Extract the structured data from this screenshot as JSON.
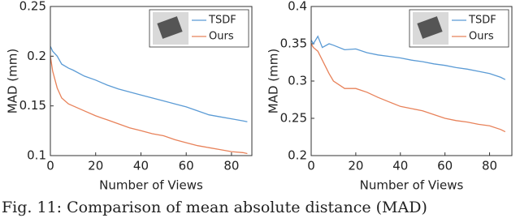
{
  "chart_data": [
    {
      "type": "line",
      "xlabel": "Number of Views",
      "ylabel": "MAD (mm)",
      "x": [
        0,
        1,
        3,
        5,
        8,
        10,
        15,
        20,
        25,
        30,
        35,
        40,
        45,
        50,
        55,
        60,
        65,
        70,
        75,
        80,
        85,
        87
      ],
      "series": [
        {
          "name": "TSDF",
          "color": "#5b9bd5",
          "values": [
            0.21,
            0.205,
            0.2,
            0.192,
            0.188,
            0.186,
            0.18,
            0.176,
            0.171,
            0.167,
            0.164,
            0.161,
            0.158,
            0.155,
            0.152,
            0.149,
            0.145,
            0.141,
            0.139,
            0.137,
            0.135,
            0.134
          ]
        },
        {
          "name": "Ours",
          "color": "#e8825a",
          "values": [
            0.2,
            0.185,
            0.168,
            0.158,
            0.152,
            0.15,
            0.145,
            0.14,
            0.136,
            0.132,
            0.128,
            0.125,
            0.122,
            0.12,
            0.116,
            0.113,
            0.11,
            0.108,
            0.106,
            0.104,
            0.103,
            0.102
          ]
        }
      ],
      "xlim": [
        0,
        89
      ],
      "xticks": [
        0,
        20,
        40,
        60,
        80
      ],
      "ylim": [
        0.1,
        0.25
      ],
      "yticks": [
        0.1,
        0.15,
        0.2,
        0.25
      ],
      "legend": "upper right"
    },
    {
      "type": "line",
      "xlabel": "Number of Views",
      "ylabel": "MAD (mm)",
      "x": [
        0,
        1,
        3,
        5,
        8,
        10,
        15,
        20,
        25,
        30,
        35,
        40,
        45,
        50,
        55,
        60,
        65,
        70,
        75,
        80,
        85,
        87
      ],
      "series": [
        {
          "name": "TSDF",
          "color": "#5b9bd5",
          "values": [
            0.355,
            0.35,
            0.36,
            0.345,
            0.35,
            0.348,
            0.342,
            0.343,
            0.338,
            0.335,
            0.333,
            0.331,
            0.328,
            0.326,
            0.323,
            0.321,
            0.318,
            0.316,
            0.313,
            0.31,
            0.305,
            0.302
          ]
        },
        {
          "name": "Ours",
          "color": "#e8825a",
          "values": [
            0.35,
            0.345,
            0.34,
            0.328,
            0.31,
            0.3,
            0.29,
            0.29,
            0.285,
            0.278,
            0.272,
            0.266,
            0.263,
            0.26,
            0.255,
            0.25,
            0.247,
            0.245,
            0.242,
            0.24,
            0.235,
            0.232
          ]
        }
      ],
      "xlim": [
        0,
        90
      ],
      "xticks": [
        0,
        20,
        40,
        60,
        80
      ],
      "ylim": [
        0.2,
        0.4
      ],
      "yticks": [
        0.2,
        0.25,
        0.3,
        0.35,
        0.4
      ],
      "legend": "upper right"
    }
  ],
  "caption": "Fig. 11: Comparison of mean absolute distance (MAD)"
}
